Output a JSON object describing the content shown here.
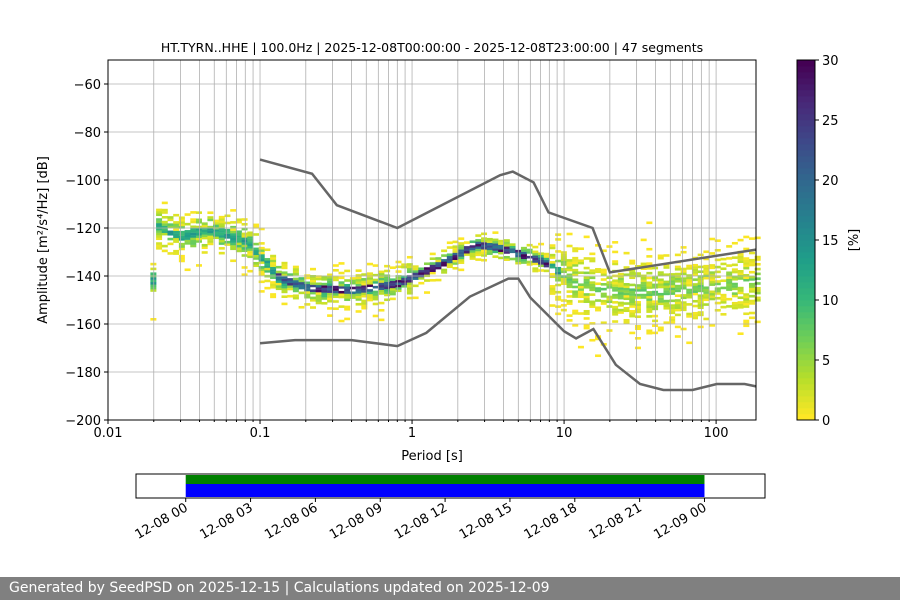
{
  "chart_data": {
    "type": "heatmap",
    "title": "HT.TYRN..HHE | 100.0Hz | 2025-12-08T00:00:00 - 2025-12-08T23:00:00 | 47 segments",
    "xlabel": "Period [s]",
    "ylabel": "Amplitude [m²/s⁴/Hz] [dB]",
    "xscale": "log",
    "xlim": [
      0.01,
      183
    ],
    "ylim": [
      -200,
      -50
    ],
    "xticks": [
      {
        "v": 0.01,
        "label": "0.01"
      },
      {
        "v": 0.1,
        "label": "0.1"
      },
      {
        "v": 1,
        "label": "1"
      },
      {
        "v": 10,
        "label": "10"
      },
      {
        "v": 100,
        "label": "100"
      }
    ],
    "yticks": [
      {
        "v": -60,
        "label": "−60"
      },
      {
        "v": -80,
        "label": "−80"
      },
      {
        "v": -100,
        "label": "−100"
      },
      {
        "v": -120,
        "label": "−120"
      },
      {
        "v": -140,
        "label": "−140"
      },
      {
        "v": -160,
        "label": "−160"
      },
      {
        "v": -180,
        "label": "−180"
      },
      {
        "v": -200,
        "label": "−200"
      }
    ],
    "grid": true,
    "colorbar": {
      "label": "[%]",
      "range": [
        0,
        30
      ],
      "ticks": [
        "0",
        "5",
        "10",
        "15",
        "20",
        "25",
        "30"
      ],
      "colormap": "viridis_r"
    },
    "noise_models": [
      {
        "name": "NHNM",
        "color": "#666666",
        "points": [
          [
            0.1,
            -91.5
          ],
          [
            0.22,
            -97.4
          ],
          [
            0.32,
            -110.5
          ],
          [
            0.8,
            -120
          ],
          [
            3.8,
            -98
          ],
          [
            4.6,
            -96.5
          ],
          [
            6.3,
            -101
          ],
          [
            7.9,
            -113.5
          ],
          [
            15.4,
            -120
          ],
          [
            20,
            -138.5
          ],
          [
            183,
            -129
          ]
        ]
      },
      {
        "name": "NLNM",
        "color": "#666666",
        "points": [
          [
            0.1,
            -168
          ],
          [
            0.17,
            -166.7
          ],
          [
            0.4,
            -166.7
          ],
          [
            0.8,
            -169.2
          ],
          [
            1.24,
            -163.7
          ],
          [
            2.4,
            -148.6
          ],
          [
            4.3,
            -141.1
          ],
          [
            5,
            -141.1
          ],
          [
            6,
            -149
          ],
          [
            10,
            -163
          ],
          [
            12,
            -166
          ],
          [
            15.6,
            -162.1
          ],
          [
            21.9,
            -177
          ],
          [
            31.6,
            -185
          ],
          [
            45,
            -187.5
          ],
          [
            70,
            -187.5
          ],
          [
            101,
            -185
          ],
          [
            154,
            -185
          ],
          [
            183,
            -186
          ]
        ]
      }
    ],
    "mode_curve": [
      [
        0.02,
        -119
      ],
      [
        0.03,
        -124
      ],
      [
        0.04,
        -121
      ],
      [
        0.06,
        -123
      ],
      [
        0.08,
        -126
      ],
      [
        0.1,
        -133
      ],
      [
        0.13,
        -141
      ],
      [
        0.2,
        -145
      ],
      [
        0.4,
        -146
      ],
      [
        0.8,
        -143
      ],
      [
        1.5,
        -135
      ],
      [
        2.5,
        -127
      ],
      [
        3.5,
        -128
      ],
      [
        5,
        -131
      ],
      [
        7,
        -134
      ],
      [
        10,
        -140
      ],
      [
        15,
        -145
      ],
      [
        30,
        -147
      ],
      [
        60,
        -146
      ],
      [
        183,
        -142
      ]
    ],
    "mode_peak_percent": 30
  },
  "timeline": {
    "ticks": [
      "12-08 00",
      "12-08 03",
      "12-08 06",
      "12-08 09",
      "12-08 12",
      "12-08 15",
      "12-08 18",
      "12-08 21",
      "12-09 00"
    ],
    "coverage_hours": [
      0,
      24
    ],
    "range_hours": [
      -2.3,
      26.8
    ],
    "colors": {
      "data": "#0000ff",
      "processed": "#008000"
    }
  },
  "footer": "Generated by SeedPSD on 2025-12-15 | Calculations updated on 2025-12-09"
}
